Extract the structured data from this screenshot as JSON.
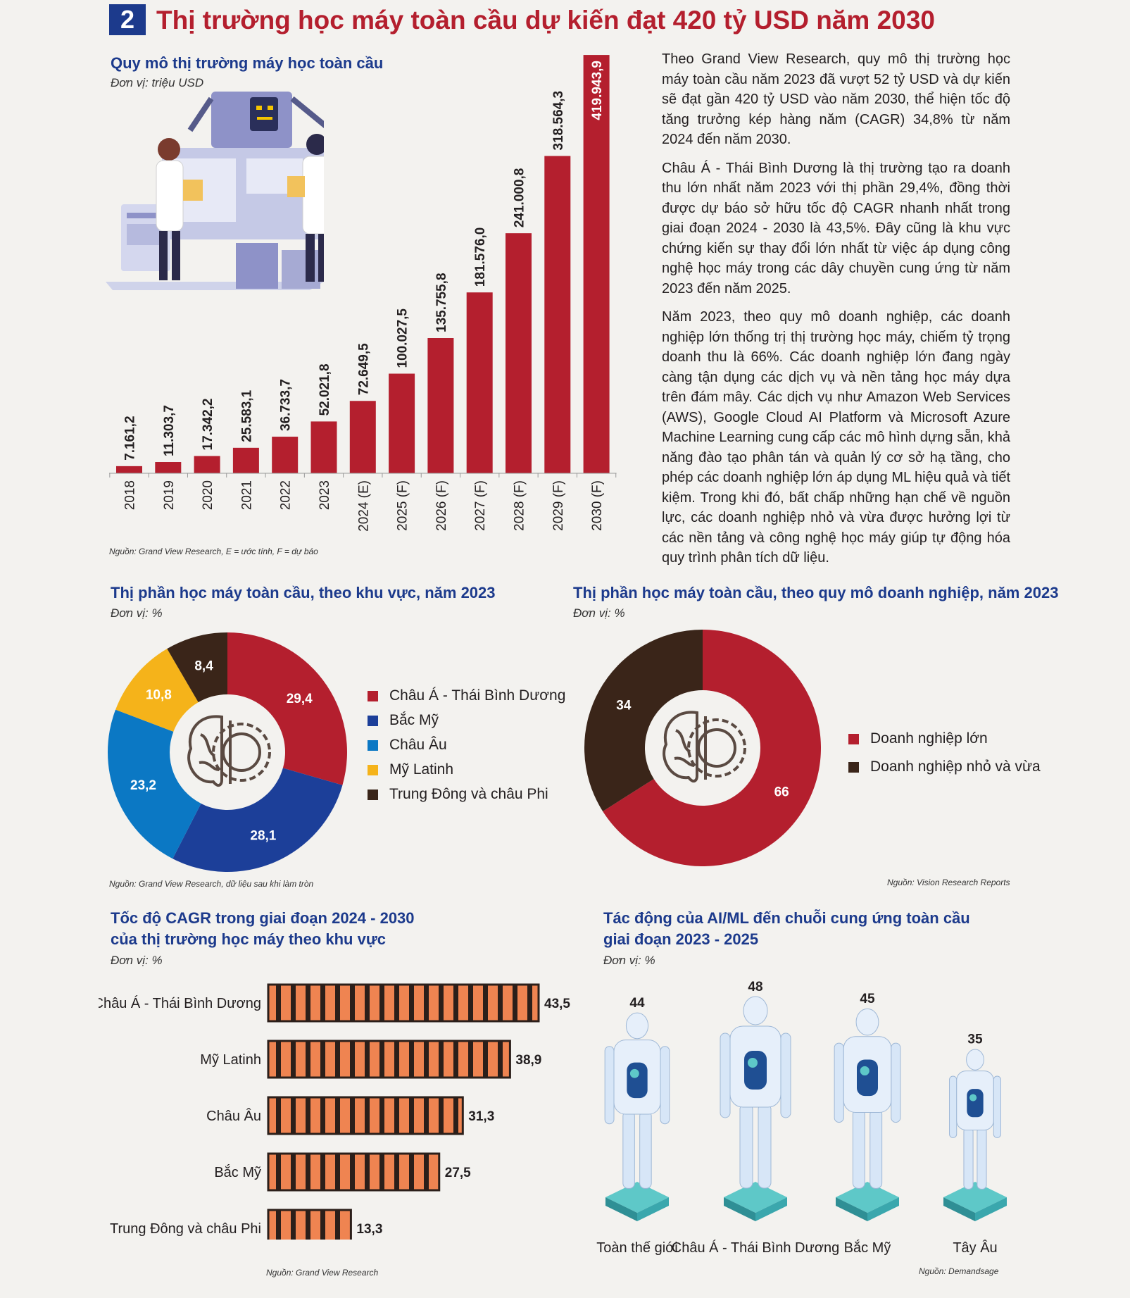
{
  "header": {
    "badge": "2",
    "title": "Thị trường học máy toàn cầu dự kiến đạt 420 tỷ USD năm 2030"
  },
  "market_chart": {
    "title": "Quy mô thị trường máy học toàn cầu",
    "unit": "Đơn vị: triệu USD",
    "source": "Nguồn: Grand View Research, E = ước tính, F = dự báo",
    "bar_color": "#b41f2e"
  },
  "article": {
    "paragraphs": [
      "Theo Grand View Research, quy mô thị trường học máy toàn cầu năm 2023 đã vượt 52 tỷ USD và dự kiến sẽ đạt gần 420 tỷ USD vào năm 2030, thể hiện tốc độ tăng trưởng kép hàng năm (CAGR) 34,8% từ năm 2024 đến năm 2030.",
      "Châu Á - Thái Bình Dương là thị trường tạo ra doanh thu lớn nhất năm 2023 với thị phần 29,4%, đồng thời được dự báo sở hữu tốc độ CAGR nhanh nhất trong giai đoạn 2024 - 2030 là 43,5%. Đây cũng là khu vực chứng kiến sự thay đổi lớn nhất từ việc áp dụng công nghệ học máy trong các dây chuyền cung ứng từ năm 2023 đến năm 2025.",
      "Năm 2023, theo quy mô doanh nghiệp, các doanh nghiệp lớn thống trị thị trường học máy, chiếm tỷ trọng doanh thu là 66%. Các doanh nghiệp lớn đang ngày càng tận dụng các dịch vụ và nền tảng học máy dựa trên đám mây. Các dịch vụ như Amazon Web Services (AWS), Google Cloud AI Platform và Microsoft Azure Machine Learning cung cấp các mô hình dựng sẵn, khả năng đào tạo phân tán và quản lý cơ sở hạ tầng, cho phép các doanh nghiệp lớn áp dụng ML hiệu quả và tiết kiệm. Trong khi đó, bất chấp những hạn chế về nguồn lực, các doanh nghiệp nhỏ và vừa được hưởng lợi từ các nền tảng và công nghệ học máy giúp tự động hóa quy trình phân tích dữ liệu."
    ]
  },
  "region_donut": {
    "title": "Thị phần học máy toàn cầu, theo khu vực, năm 2023",
    "unit": "Đơn vị: %",
    "source": "Nguồn: Grand View Research, dữ liệu sau khi làm tròn"
  },
  "size_donut": {
    "title": "Thị phần học máy toàn cầu, theo quy mô doanh nghiệp, năm 2023",
    "unit": "Đơn vị: %",
    "source": "Nguồn: Vision Research Reports"
  },
  "cagr_chart": {
    "title_line1": "Tốc độ CAGR trong giai đoạn 2024 - 2030",
    "title_line2": "của thị trường học máy theo khu vực",
    "unit": "Đơn vị: %",
    "source": "Nguồn: Grand View Research"
  },
  "impact_chart": {
    "title_line1": "Tác động của AI/ML đến chuỗi cung ứng toàn cầu",
    "title_line2": "giai đoạn 2023 - 2025",
    "unit": "Đơn vị: %",
    "source": "Nguồn: Demandsage"
  },
  "chart_data": [
    {
      "type": "bar",
      "title": "Quy mô thị trường máy học toàn cầu",
      "ylabel": "Đơn vị: triệu USD",
      "categories": [
        "2018",
        "2019",
        "2020",
        "2021",
        "2022",
        "2023",
        "2024 (E)",
        "2025 (F)",
        "2026 (F)",
        "2027 (F)",
        "2028 (F)",
        "2029 (F)",
        "2030 (F)"
      ],
      "values": [
        7161.2,
        11303.7,
        17342.2,
        25583.1,
        36733.7,
        52021.8,
        72649.5,
        100027.5,
        135755.8,
        181576.0,
        241000.8,
        318564.3,
        419943.9
      ],
      "labels": [
        "7.161,2",
        "11.303,7",
        "17.342,2",
        "25.583,1",
        "36.733,7",
        "52.021,8",
        "72.649,5",
        "100.027,5",
        "135.755,8",
        "181.576,0",
        "241.000,8",
        "318.564,3",
        "419.943,9"
      ],
      "ylim": [
        0,
        420000
      ]
    },
    {
      "type": "pie",
      "title": "Thị phần học máy toàn cầu, theo khu vực, năm 2023",
      "slices": [
        {
          "name": "Châu Á - Thái Bình Dương",
          "value": 29.4,
          "label": "29,4",
          "color": "#b41f2e"
        },
        {
          "name": "Bắc Mỹ",
          "value": 28.1,
          "label": "28,1",
          "color": "#1c3f99"
        },
        {
          "name": "Châu Âu",
          "value": 23.2,
          "label": "23,2",
          "color": "#0b78c4"
        },
        {
          "name": "Mỹ Latinh",
          "value": 10.8,
          "label": "10,8",
          "color": "#f5b31a"
        },
        {
          "name": "Trung Đông và châu Phi",
          "value": 8.4,
          "label": "8,4",
          "color": "#3a2519"
        }
      ]
    },
    {
      "type": "pie",
      "title": "Thị phần học máy toàn cầu, theo quy mô doanh nghiệp, năm 2023",
      "slices": [
        {
          "name": "Doanh nghiệp lớn",
          "value": 66,
          "label": "66",
          "color": "#b41f2e"
        },
        {
          "name": "Doanh nghiệp nhỏ và vừa",
          "value": 34,
          "label": "34",
          "color": "#3a2519"
        }
      ]
    },
    {
      "type": "bar",
      "orientation": "horizontal",
      "title": "Tốc độ CAGR trong giai đoạn 2024 - 2030 của thị trường học máy theo khu vực",
      "categories": [
        "Châu Á - Thái Bình Dương",
        "Mỹ Latinh",
        "Châu Âu",
        "Bắc Mỹ",
        "Trung Đông và châu Phi"
      ],
      "values": [
        43.5,
        38.9,
        31.3,
        27.5,
        13.3
      ],
      "labels": [
        "43,5",
        "38,9",
        "31,3",
        "27,5",
        "13,3"
      ],
      "colors": {
        "fill": "#ef8451",
        "stripe": "#2b1f1a"
      }
    },
    {
      "type": "bar",
      "title": "Tác động của AI/ML đến chuỗi cung ứng toàn cầu giai đoạn 2023 - 2025",
      "categories": [
        "Toàn thế giới",
        "Châu Á - Thái Bình Dương",
        "Bắc Mỹ",
        "Tây Âu"
      ],
      "values": [
        44,
        48,
        45,
        35
      ],
      "labels": [
        "44",
        "48",
        "45",
        "35"
      ]
    }
  ]
}
